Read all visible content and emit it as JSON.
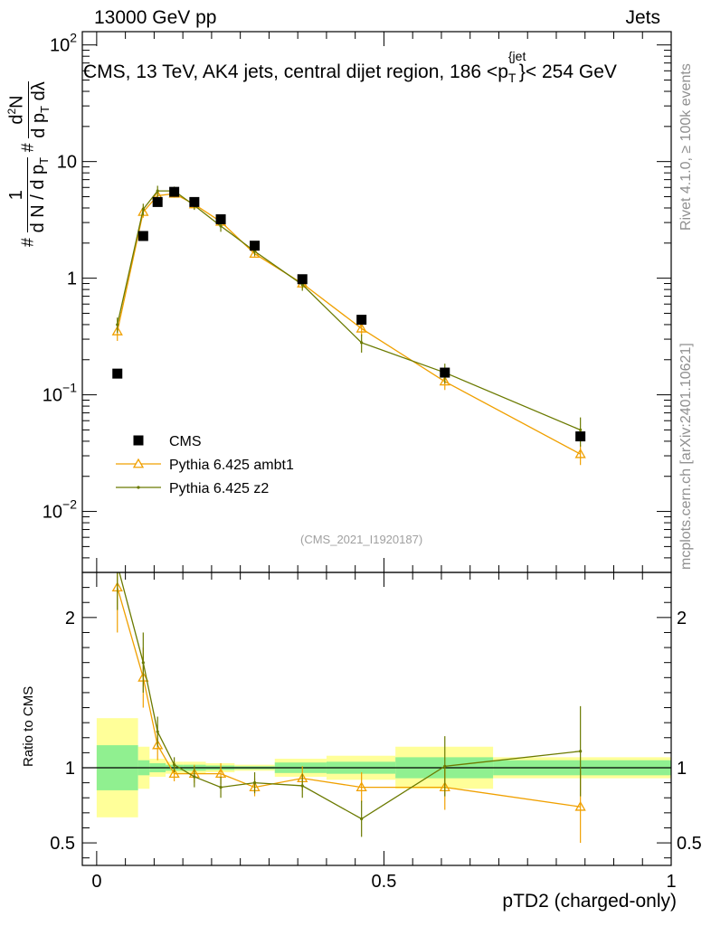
{
  "header": {
    "left": "13000 GeV pp",
    "right": "Jets"
  },
  "chart_data": [
    {
      "type": "scatter",
      "panel": "main",
      "title": "CMS, 13 TeV, AK4 jets, central dijet region, 186 <p_T^{jet}< 254 GeV",
      "title_main": "CMS, 13 TeV, AK4 jets, central dijet region, 186 <p",
      "title_sub": "T",
      "title_sup": "{jet",
      "title_end": "}< 254 GeV",
      "ylabel": "1/(dN/dp_T) d²N/(dp_T dλ)",
      "yscale": "log",
      "ylim": [
        0.003,
        130
      ],
      "xlim": [
        -0.025,
        1.0
      ],
      "y_ticks": [
        {
          "value": 100,
          "base": "10",
          "exp": "2"
        },
        {
          "value": 10,
          "base": "10",
          "exp": ""
        },
        {
          "value": 1,
          "base": "1",
          "exp": ""
        },
        {
          "value": 0.1,
          "base": "10",
          "exp": "−1"
        },
        {
          "value": 0.01,
          "base": "10",
          "exp": "−2"
        }
      ],
      "series": [
        {
          "name": "CMS",
          "color": "#000000",
          "marker": "square",
          "x": [
            0.036,
            0.081,
            0.106,
            0.135,
            0.17,
            0.216,
            0.275,
            0.358,
            0.461,
            0.606,
            0.842
          ],
          "y": [
            0.152,
            2.3,
            4.5,
            5.5,
            4.5,
            3.2,
            1.9,
            0.98,
            0.44,
            0.155,
            0.044
          ]
        },
        {
          "name": "Pythia 6.425 ambt1",
          "color": "#f0a000",
          "marker": "triangle",
          "x": [
            0.036,
            0.081,
            0.106,
            0.135,
            0.17,
            0.216,
            0.275,
            0.358,
            0.461,
            0.606,
            0.842
          ],
          "y": [
            0.35,
            3.7,
            5.1,
            5.3,
            4.3,
            3.05,
            1.62,
            0.9,
            0.37,
            0.13,
            0.031
          ],
          "err": [
            0.06,
            0.4,
            0.5,
            0.4,
            0.3,
            0.25,
            0.12,
            0.09,
            0.05,
            0.02,
            0.006
          ]
        },
        {
          "name": "Pythia 6.425 z2",
          "color": "#6b7a00",
          "marker": "dot",
          "x": [
            0.036,
            0.081,
            0.106,
            0.135,
            0.17,
            0.216,
            0.275,
            0.358,
            0.461,
            0.606,
            0.842
          ],
          "y": [
            0.4,
            3.9,
            5.6,
            5.6,
            4.2,
            2.8,
            1.7,
            0.88,
            0.28,
            0.155,
            0.05
          ],
          "err": [
            0.06,
            0.45,
            0.6,
            0.5,
            0.35,
            0.3,
            0.14,
            0.1,
            0.05,
            0.03,
            0.014
          ]
        }
      ]
    },
    {
      "type": "scatter",
      "panel": "ratio",
      "ylabel": "Ratio to CMS",
      "xlabel": "pTD2 (charged-only)",
      "ylim": [
        0.35,
        2.3
      ],
      "xlim": [
        -0.025,
        1.0
      ],
      "y_ticks": [
        0.5,
        1,
        2
      ],
      "y_tick_labels": [
        "0.5",
        "1",
        "2"
      ],
      "x_ticks": [
        0,
        0.5,
        1
      ],
      "x_tick_labels": [
        "0",
        "0.5",
        "1"
      ],
      "bins": [
        0,
        0.072,
        0.092,
        0.12,
        0.15,
        0.19,
        0.24,
        0.31,
        0.4,
        0.52,
        0.69,
        1.0
      ],
      "band_1sigma_low": [
        0.85,
        0.95,
        0.97,
        0.98,
        0.98,
        0.985,
        0.99,
        0.965,
        0.96,
        0.93,
        0.95
      ],
      "band_1sigma_high": [
        1.15,
        1.05,
        1.03,
        1.02,
        1.02,
        1.015,
        1.01,
        1.035,
        1.04,
        1.07,
        1.05
      ],
      "band_2sigma_low": [
        0.67,
        0.86,
        0.94,
        0.96,
        0.96,
        0.97,
        0.98,
        0.94,
        0.92,
        0.86,
        0.93
      ],
      "band_2sigma_high": [
        1.33,
        1.14,
        1.06,
        1.04,
        1.04,
        1.03,
        1.02,
        1.06,
        1.08,
        1.14,
        1.07
      ],
      "series": [
        {
          "name": "Pythia 6.425 ambt1",
          "color": "#f0a000",
          "x": [
            0.036,
            0.081,
            0.106,
            0.135,
            0.17,
            0.216,
            0.275,
            0.358,
            0.461,
            0.606,
            0.842
          ],
          "y": [
            2.2,
            1.6,
            1.15,
            0.96,
            0.96,
            0.96,
            0.87,
            0.93,
            0.87,
            0.87,
            0.74
          ],
          "err": [
            0.3,
            0.2,
            0.1,
            0.05,
            0.06,
            0.07,
            0.06,
            0.08,
            0.1,
            0.15,
            0.24
          ]
        },
        {
          "name": "Pythia 6.425 z2",
          "color": "#6b7a00",
          "x": [
            0.036,
            0.081,
            0.106,
            0.135,
            0.17,
            0.216,
            0.275,
            0.358,
            0.461,
            0.606,
            0.842
          ],
          "y": [
            2.35,
            1.7,
            1.24,
            1.02,
            0.94,
            0.87,
            0.9,
            0.88,
            0.66,
            1.01,
            1.11
          ],
          "err": [
            0.3,
            0.2,
            0.1,
            0.05,
            0.07,
            0.07,
            0.07,
            0.08,
            0.12,
            0.2,
            0.3
          ]
        }
      ]
    }
  ],
  "legend": [
    {
      "label": "CMS"
    },
    {
      "label": "Pythia 6.425 ambt1"
    },
    {
      "label": "Pythia 6.425 z2"
    }
  ],
  "watermark": "(CMS_2021_I1920187)",
  "side_text": {
    "rivet": "Rivet 4.1.0, ≥ 100k events",
    "mcplots": "mcplots.cern.ch [arXiv:2401.10621]"
  },
  "colors": {
    "band_inner": "#90f090",
    "band_outer": "#ffff99",
    "ambt1": "#f0a000",
    "z2": "#6b7a00"
  }
}
